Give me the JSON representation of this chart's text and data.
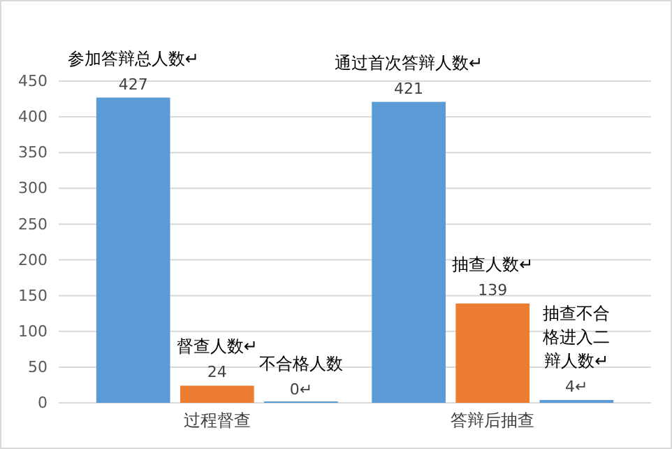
{
  "chart_data": {
    "type": "bar",
    "categories": [
      "过程督查",
      "答辩后抽查"
    ],
    "series": [
      {
        "color": "#5b9bd5",
        "values": [
          427,
          421
        ],
        "value_labels": [
          "427",
          "421"
        ]
      },
      {
        "color": "#ed7d31",
        "values": [
          24,
          139
        ],
        "value_labels": [
          "24",
          "139"
        ]
      },
      {
        "color": "#5b9bd5",
        "values": [
          0,
          4
        ],
        "value_labels": [
          "0↵",
          "4↵"
        ]
      }
    ],
    "annotations": [
      "参加答辩总人数↵",
      "督查人数↵",
      "不合格人数",
      "通过首次答辩人数↵",
      "抽查人数↵",
      "抽查不合格进入二辩人数↵"
    ],
    "ylim": [
      0,
      450
    ],
    "yticks": [
      0,
      50,
      100,
      150,
      200,
      250,
      300,
      350,
      400,
      450
    ],
    "grid": "y"
  }
}
